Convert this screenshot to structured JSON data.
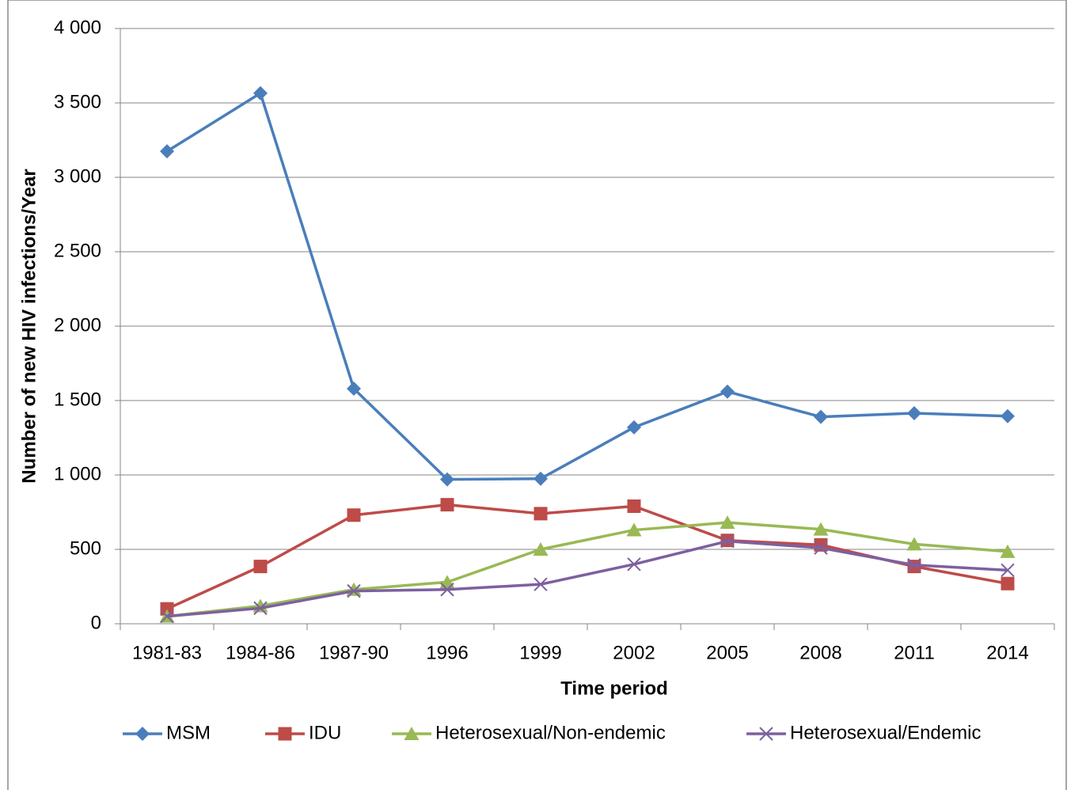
{
  "chart_data": {
    "type": "line",
    "xlabel": "Time period",
    "ylabel": "Number of new HIV infections/Year",
    "categories": [
      "1981-83",
      "1984-86",
      "1987-90",
      "1996",
      "1999",
      "2002",
      "2005",
      "2008",
      "2011",
      "2014"
    ],
    "series": [
      {
        "name": "MSM",
        "color": "#4a7ebb",
        "marker": "diamond",
        "values": [
          3175,
          3565,
          1580,
          970,
          975,
          1320,
          1560,
          1390,
          1415,
          1395
        ]
      },
      {
        "name": "IDU",
        "color": "#be4b48",
        "marker": "square",
        "values": [
          100,
          385,
          730,
          800,
          740,
          790,
          560,
          530,
          385,
          270
        ]
      },
      {
        "name": "Heterosexual/Non-endemic",
        "color": "#98b954",
        "marker": "triangle",
        "values": [
          50,
          120,
          230,
          280,
          500,
          630,
          680,
          635,
          535,
          485
        ]
      },
      {
        "name": "Heterosexual/Endemic",
        "color": "#7d60a0",
        "marker": "x",
        "values": [
          50,
          105,
          220,
          230,
          265,
          400,
          555,
          510,
          395,
          360
        ]
      }
    ],
    "ylim": [
      0,
      4000
    ],
    "yticks": [
      0,
      500,
      {
        "value": 1000,
        "label": "1 000"
      },
      {
        "value": 1500,
        "label": "1 500"
      },
      {
        "value": 2000,
        "label": "2 000"
      },
      {
        "value": 2500,
        "label": "2 500"
      },
      {
        "value": 3000,
        "label": "3 000"
      },
      {
        "value": 3500,
        "label": "3 500"
      },
      {
        "value": 4000,
        "label": "4 000"
      }
    ],
    "grid": true,
    "legend": "bottom"
  }
}
